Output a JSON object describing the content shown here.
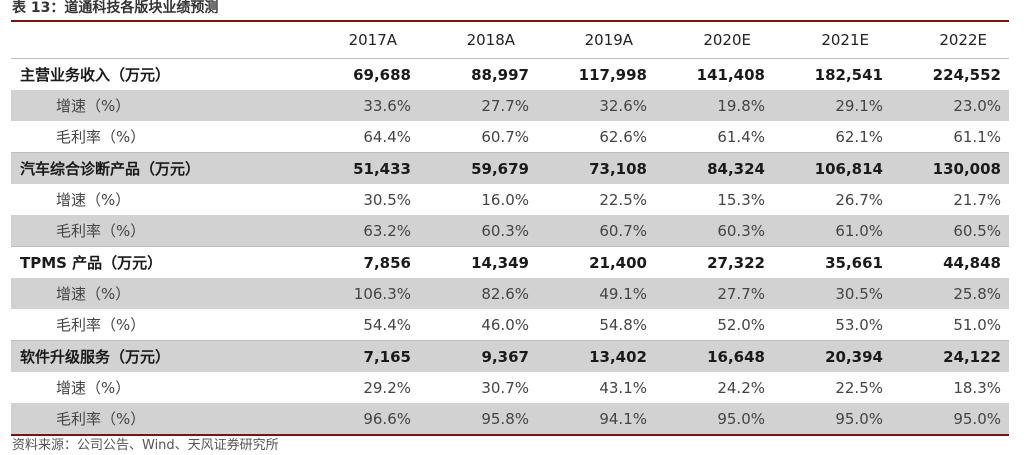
{
  "caption": "表 13：道通科技各版块业绩预测",
  "table": {
    "columns": [
      "",
      "2017A",
      "2018A",
      "2019A",
      "2020E",
      "2021E",
      "2022E"
    ],
    "rows": [
      {
        "label": "主营业务收入（万元）",
        "kind": "main",
        "shade": false,
        "values": [
          "69,688",
          "88,997",
          "117,998",
          "141,408",
          "182,541",
          "224,552"
        ]
      },
      {
        "label": "增速（%）",
        "kind": "sub",
        "shade": true,
        "values": [
          "33.6%",
          "27.7%",
          "32.6%",
          "19.8%",
          "29.1%",
          "23.0%"
        ]
      },
      {
        "label": "毛利率（%）",
        "kind": "sub",
        "shade": false,
        "values": [
          "64.4%",
          "60.7%",
          "62.6%",
          "61.4%",
          "62.1%",
          "61.1%"
        ]
      },
      {
        "label": "汽车综合诊断产品（万元）",
        "kind": "main",
        "shade": true,
        "values": [
          "51,433",
          "59,679",
          "73,108",
          "84,324",
          "106,814",
          "130,008"
        ]
      },
      {
        "label": "增速（%）",
        "kind": "sub",
        "shade": false,
        "values": [
          "30.5%",
          "16.0%",
          "22.5%",
          "15.3%",
          "26.7%",
          "21.7%"
        ]
      },
      {
        "label": "毛利率（%）",
        "kind": "sub",
        "shade": true,
        "values": [
          "63.2%",
          "60.3%",
          "60.7%",
          "60.3%",
          "61.0%",
          "60.5%"
        ]
      },
      {
        "label": "TPMS 产品（万元）",
        "kind": "main",
        "shade": false,
        "values": [
          "7,856",
          "14,349",
          "21,400",
          "27,322",
          "35,661",
          "44,848"
        ]
      },
      {
        "label": "增速（%）",
        "kind": "sub",
        "shade": true,
        "values": [
          "106.3%",
          "82.6%",
          "49.1%",
          "27.7%",
          "30.5%",
          "25.8%"
        ]
      },
      {
        "label": "毛利率（%）",
        "kind": "sub",
        "shade": false,
        "values": [
          "54.4%",
          "46.0%",
          "54.8%",
          "52.0%",
          "53.0%",
          "51.0%"
        ]
      },
      {
        "label": "软件升级服务（万元）",
        "kind": "main",
        "shade": true,
        "values": [
          "7,165",
          "9,367",
          "13,402",
          "16,648",
          "20,394",
          "24,122"
        ]
      },
      {
        "label": "增速（%）",
        "kind": "sub",
        "shade": false,
        "values": [
          "29.2%",
          "30.7%",
          "43.1%",
          "24.2%",
          "22.5%",
          "18.3%"
        ]
      },
      {
        "label": "毛利率（%）",
        "kind": "sub",
        "shade": true,
        "values": [
          "96.6%",
          "95.8%",
          "94.1%",
          "95.0%",
          "95.0%",
          "95.0%"
        ]
      }
    ]
  },
  "source": "资料来源：公司公告、Wind、天风证券研究所",
  "colors": {
    "rule": "#7a1414",
    "shade": "#d2d2d2"
  }
}
